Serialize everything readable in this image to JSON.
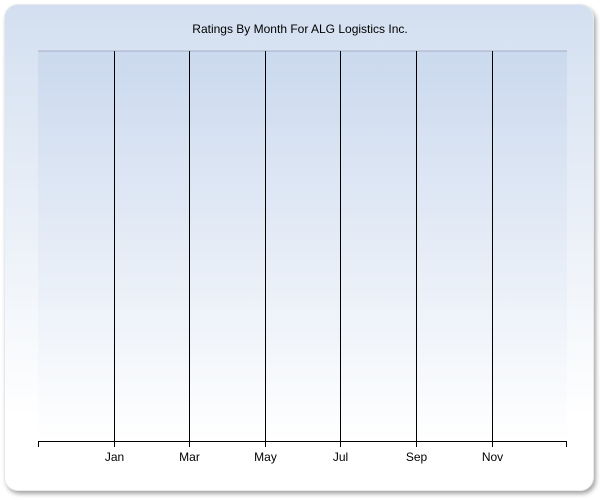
{
  "chart_data": {
    "type": "line",
    "title": "Ratings By Month For ALG Logistics Inc.",
    "xlabel": "",
    "ylabel": "",
    "x_tick_labels": [
      "Jan",
      "Mar",
      "May",
      "Jul",
      "Sep",
      "Nov"
    ],
    "series": [],
    "grid": {
      "vertical": true,
      "horizontal": false
    },
    "colors": {
      "plot_top": "#cbd9ee",
      "plot_bottom": "#ffffff",
      "gridline": "#000000"
    }
  }
}
